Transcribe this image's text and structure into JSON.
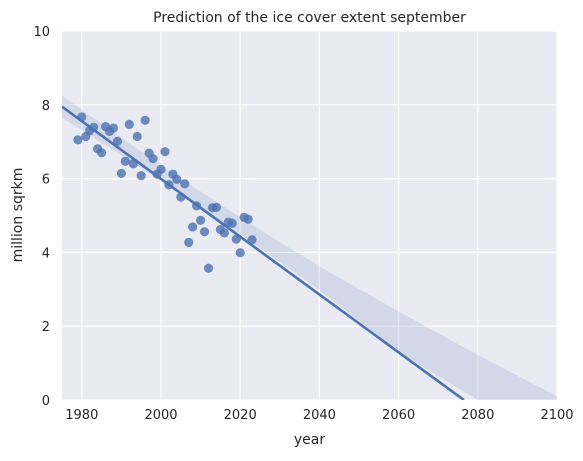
{
  "chart_data": {
    "type": "scatter",
    "title": "Prediction of the ice cover extent september",
    "xlabel": "year",
    "ylabel": "million sqrkm",
    "xlim": [
      1975,
      2100
    ],
    "ylim": [
      0,
      10
    ],
    "x_ticks": [
      1980,
      2000,
      2020,
      2040,
      2060,
      2080,
      2100
    ],
    "y_ticks": [
      0,
      2,
      4,
      6,
      8,
      10
    ],
    "grid": true,
    "colors": {
      "points": "#4c72b0",
      "line": "#4c72b0",
      "band": "#4c72b0",
      "background": "#eaeaf2",
      "grid": "#ffffff"
    },
    "series": [
      {
        "points": [
          [
            1979,
            7.05
          ],
          [
            1980,
            7.67
          ],
          [
            1981,
            7.14
          ],
          [
            1982,
            7.3
          ],
          [
            1983,
            7.39
          ],
          [
            1984,
            6.81
          ],
          [
            1985,
            6.7
          ],
          [
            1986,
            7.41
          ],
          [
            1987,
            7.28
          ],
          [
            1988,
            7.37
          ],
          [
            1989,
            7.01
          ],
          [
            1990,
            6.14
          ],
          [
            1991,
            6.47
          ],
          [
            1992,
            7.47
          ],
          [
            1993,
            6.4
          ],
          [
            1994,
            7.14
          ],
          [
            1995,
            6.08
          ],
          [
            1996,
            7.58
          ],
          [
            1997,
            6.69
          ],
          [
            1998,
            6.54
          ],
          [
            1999,
            6.12
          ],
          [
            2000,
            6.25
          ],
          [
            2001,
            6.73
          ],
          [
            2002,
            5.83
          ],
          [
            2003,
            6.12
          ],
          [
            2004,
            5.98
          ],
          [
            2005,
            5.5
          ],
          [
            2006,
            5.86
          ],
          [
            2007,
            4.27
          ],
          [
            2008,
            4.69
          ],
          [
            2009,
            5.26
          ],
          [
            2010,
            4.87
          ],
          [
            2011,
            4.56
          ],
          [
            2012,
            3.57
          ],
          [
            2013,
            5.21
          ],
          [
            2014,
            5.22
          ],
          [
            2015,
            4.62
          ],
          [
            2016,
            4.53
          ],
          [
            2017,
            4.82
          ],
          [
            2018,
            4.79
          ],
          [
            2019,
            4.36
          ],
          [
            2020,
            3.99
          ],
          [
            2021,
            4.95
          ],
          [
            2022,
            4.9
          ],
          [
            2023,
            4.34
          ]
        ]
      }
    ],
    "regression": {
      "start": [
        1975,
        7.95
      ],
      "end": [
        2076.5,
        0.0
      ]
    },
    "confidence_band": {
      "x": [
        1975,
        2000,
        2020,
        2040,
        2060,
        2080,
        2100
      ],
      "upper": [
        8.25,
        6.35,
        4.95,
        3.62,
        2.4,
        1.22,
        0.1
      ],
      "lower": [
        7.65,
        5.95,
        4.5,
        2.98,
        1.3,
        0.0,
        0.0
      ]
    }
  }
}
